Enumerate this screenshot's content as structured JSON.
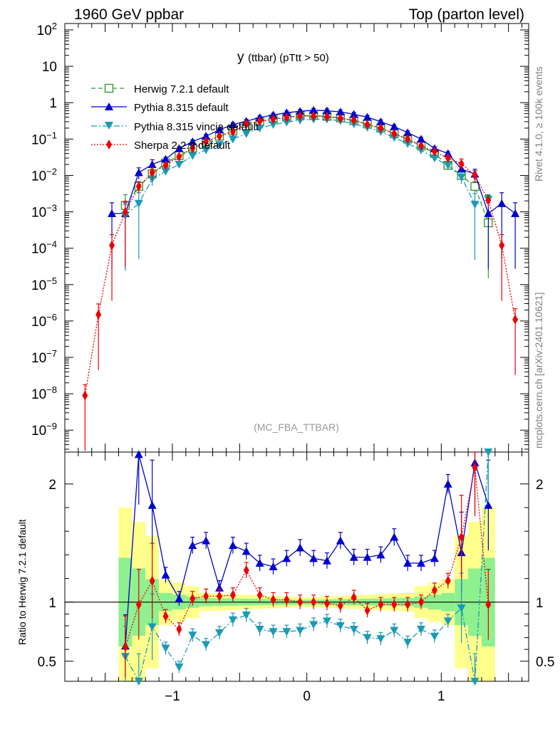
{
  "header": {
    "left": "1960 GeV ppbar",
    "right": "Top (parton level)"
  },
  "side_labels": {
    "rivet": "Rivet 4.1.0, ≥ 100k events",
    "mcplots": "mcplots.cern.ch [arXiv:2401.10621]"
  },
  "colors": {
    "herwig": "#339933",
    "pythia": "#0000cc",
    "vincia": "#1a9ab5",
    "sherpa": "#ee0000",
    "band_inner": "#8ef08e",
    "band_outer": "#ffff8c"
  },
  "chart_data": [
    {
      "type": "line",
      "panel": "main",
      "title": "y",
      "title_suffix": "(ttbar)  (pTtt > 50)",
      "analysis_label": "(MC_FBA_TTBAR)",
      "yscale": "log",
      "xlim": [
        -1.8,
        1.65
      ],
      "ylim": [
        2.5e-10,
        150
      ],
      "y_tick_labels": [
        "10^2",
        "10",
        "1",
        "10^-1",
        "10^-2",
        "10^-3",
        "10^-4",
        "10^-5",
        "10^-6",
        "10^-7",
        "10^-8",
        "10^-9"
      ],
      "legend": [
        "Herwig 7.2.1 default",
        "Pythia 8.315 default",
        "Pythia 8.315 vincia default",
        "Sherpa 2.2.9 default"
      ],
      "series": [
        {
          "name": "Herwig 7.2.1 default",
          "style": "dashed",
          "marker": "open-square",
          "x": [
            -1.35,
            -1.25,
            -1.15,
            -1.05,
            -0.95,
            -0.85,
            -0.75,
            -0.65,
            -0.55,
            -0.45,
            -0.35,
            -0.25,
            -0.15,
            -0.05,
            0.05,
            0.15,
            0.25,
            0.35,
            0.45,
            0.55,
            0.65,
            0.75,
            0.85,
            0.95,
            1.05,
            1.15,
            1.25,
            1.35
          ],
          "values": [
            0.0015,
            0.005,
            0.011,
            0.022,
            0.035,
            0.057,
            0.08,
            0.12,
            0.17,
            0.23,
            0.3,
            0.36,
            0.4,
            0.44,
            0.44,
            0.42,
            0.38,
            0.32,
            0.26,
            0.2,
            0.14,
            0.1,
            0.065,
            0.04,
            0.019,
            0.01,
            0.005,
            0.0005
          ]
        },
        {
          "name": "Pythia 8.315 default",
          "style": "solid",
          "marker": "filled-triangle-up",
          "x": [
            -1.45,
            -1.35,
            -1.25,
            -1.15,
            -1.05,
            -0.95,
            -0.85,
            -0.75,
            -0.65,
            -0.55,
            -0.45,
            -0.35,
            -0.25,
            -0.15,
            -0.05,
            0.05,
            0.15,
            0.25,
            0.35,
            0.45,
            0.55,
            0.65,
            0.75,
            0.85,
            0.95,
            1.05,
            1.15,
            1.25,
            1.35,
            1.45,
            1.55
          ],
          "values": [
            0.0009,
            0.0009,
            0.012,
            0.02,
            0.028,
            0.055,
            0.085,
            0.12,
            0.18,
            0.25,
            0.31,
            0.39,
            0.46,
            0.53,
            0.58,
            0.62,
            0.6,
            0.56,
            0.48,
            0.4,
            0.3,
            0.22,
            0.15,
            0.1,
            0.055,
            0.04,
            0.015,
            0.011,
            0.0009,
            0.0017,
            0.0009
          ]
        },
        {
          "name": "Pythia 8.315 vincia default",
          "style": "dashdot",
          "marker": "filled-triangle-down",
          "x": [
            -1.35,
            -1.25,
            -1.15,
            -1.05,
            -0.95,
            -0.85,
            -0.75,
            -0.65,
            -0.55,
            -0.45,
            -0.35,
            -0.25,
            -0.15,
            -0.05,
            0.05,
            0.15,
            0.25,
            0.35,
            0.45,
            0.55,
            0.65,
            0.75,
            0.85,
            0.95,
            1.05,
            1.15,
            1.25,
            1.35
          ],
          "values": [
            0.0008,
            0.0017,
            0.008,
            0.013,
            0.02,
            0.035,
            0.05,
            0.07,
            0.1,
            0.14,
            0.2,
            0.25,
            0.29,
            0.33,
            0.35,
            0.35,
            0.32,
            0.26,
            0.21,
            0.16,
            0.11,
            0.075,
            0.05,
            0.03,
            0.019,
            0.009,
            0.0016,
            0.0022
          ]
        },
        {
          "name": "Sherpa 2.2.9 default",
          "style": "dotted",
          "marker": "filled-diamond",
          "x": [
            -1.65,
            -1.55,
            -1.45,
            -1.35,
            -1.25,
            -1.15,
            -1.05,
            -0.95,
            -0.85,
            -0.75,
            -0.65,
            -0.55,
            -0.45,
            -0.35,
            -0.25,
            -0.15,
            -0.05,
            0.05,
            0.15,
            0.25,
            0.35,
            0.45,
            0.55,
            0.65,
            0.75,
            0.85,
            0.95,
            1.05,
            1.15,
            1.25,
            1.35,
            1.45,
            1.55
          ],
          "values": [
            9e-09,
            1.5e-06,
            0.00012,
            0.001,
            0.005,
            0.012,
            0.019,
            0.033,
            0.055,
            0.085,
            0.12,
            0.16,
            0.26,
            0.31,
            0.35,
            0.39,
            0.43,
            0.43,
            0.41,
            0.37,
            0.33,
            0.25,
            0.2,
            0.14,
            0.1,
            0.065,
            0.045,
            0.03,
            0.021,
            0.01,
            0.0021,
            0.00012,
            1.1e-06
          ]
        }
      ]
    },
    {
      "type": "line",
      "panel": "ratio",
      "ylabel": "Ratio to Herwig 7.2.1 default",
      "xlim": [
        -1.8,
        1.65
      ],
      "ylim": [
        0.33,
        2.27
      ],
      "x_tick_labels": [
        "−1",
        "0",
        "1"
      ],
      "y_tick_labels": [
        "2",
        "1",
        "0.5"
      ],
      "series": [
        {
          "name": "Pythia 8.315 default",
          "x": [
            -1.35,
            -1.25,
            -1.15,
            -1.05,
            -0.95,
            -0.85,
            -0.75,
            -0.65,
            -0.55,
            -0.45,
            -0.35,
            -0.25,
            -0.15,
            -0.05,
            0.05,
            0.15,
            0.25,
            0.35,
            0.45,
            0.55,
            0.65,
            0.75,
            0.85,
            0.95,
            1.05,
            1.15,
            1.25,
            1.35
          ],
          "values": [
            0.63,
            2.25,
            1.82,
            1.23,
            1.03,
            1.48,
            1.52,
            1.12,
            1.48,
            1.43,
            1.33,
            1.3,
            1.37,
            1.46,
            1.37,
            1.35,
            1.52,
            1.38,
            1.38,
            1.4,
            1.55,
            1.33,
            1.33,
            1.37,
            2.0,
            1.42,
            2.18,
            1.82
          ]
        },
        {
          "name": "Pythia 8.315 vincia default",
          "x": [
            -1.35,
            -1.25,
            -1.15,
            -1.05,
            -0.95,
            -0.85,
            -0.75,
            -0.65,
            -0.55,
            -0.45,
            -0.35,
            -0.25,
            -0.15,
            -0.05,
            0.05,
            0.15,
            0.25,
            0.35,
            0.45,
            0.55,
            0.65,
            0.75,
            0.85,
            0.95,
            1.05,
            1.15,
            1.25,
            1.35
          ],
          "values": [
            0.54,
            0.33,
            0.79,
            0.61,
            0.45,
            0.72,
            0.64,
            0.74,
            0.85,
            0.89,
            0.77,
            0.75,
            0.75,
            0.76,
            0.81,
            0.84,
            0.8,
            0.77,
            0.7,
            0.69,
            0.76,
            0.66,
            0.77,
            0.71,
            0.84,
            0.95,
            0.33,
            2.27
          ]
        },
        {
          "name": "Sherpa 2.2.9 default",
          "x": [
            -1.35,
            -1.25,
            -1.15,
            -1.05,
            -0.95,
            -0.85,
            -0.75,
            -0.65,
            -0.55,
            -0.45,
            -0.35,
            -0.25,
            -0.15,
            -0.05,
            0.05,
            0.15,
            0.25,
            0.35,
            0.45,
            0.55,
            0.65,
            0.75,
            0.85,
            0.95,
            1.05,
            1.15,
            1.25,
            1.35
          ],
          "values": [
            0.62,
            0.98,
            1.18,
            0.88,
            0.77,
            1.03,
            1.05,
            1.05,
            1.06,
            1.27,
            1.06,
            1.02,
            1.02,
            1.0,
            1.0,
            0.99,
            0.97,
            1.04,
            0.93,
            0.98,
            0.98,
            0.98,
            1.0,
            1.1,
            1.18,
            1.55,
            2.14,
            0.98
          ]
        }
      ]
    }
  ]
}
